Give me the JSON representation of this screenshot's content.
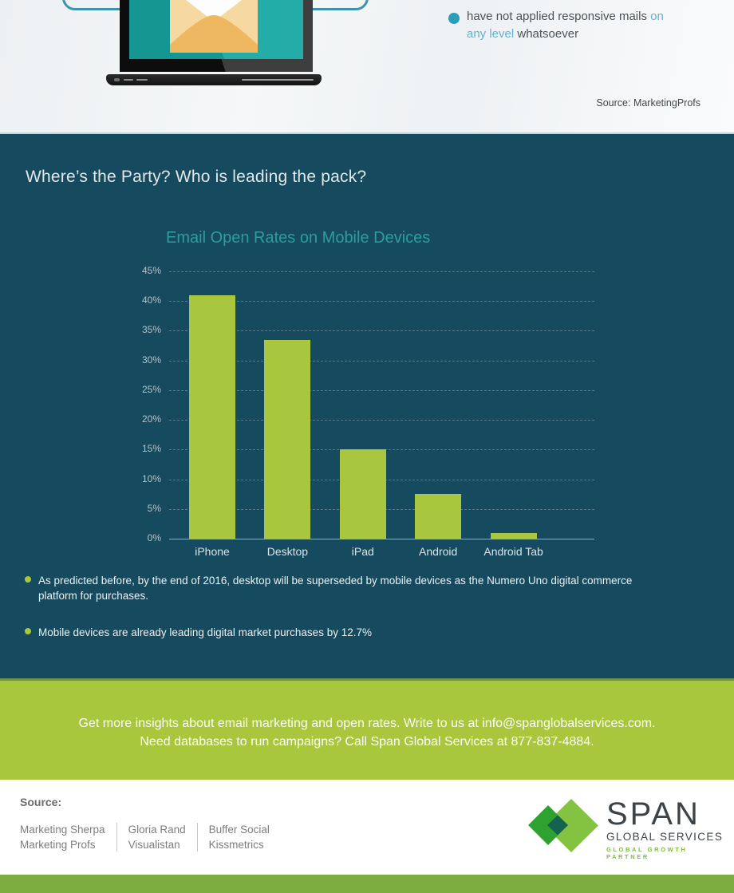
{
  "top": {
    "note": {
      "text_start": "have not applied responsive mails",
      "hl_line1": "on",
      "hl_line2": "any level",
      "text_end": "whatsoever"
    },
    "source": "Source: MarketingProfs"
  },
  "main": {
    "heading": "Where’s the Party? Who is leading the pack?",
    "bullets": [
      "As predicted before, by the end of 2016, desktop will be superseded by mobile devices as the Numero Uno digital commerce platform for purchases.",
      "Mobile devices are already leading digital market purchases by 12.7%"
    ]
  },
  "chart_data": {
    "type": "bar",
    "title": "Email Open Rates on Mobile Devices",
    "categories": [
      "iPhone",
      "Desktop",
      "iPad",
      "Android",
      "Android Tab"
    ],
    "values": [
      41,
      33.5,
      15,
      7.5,
      1
    ],
    "xlabel": "",
    "ylabel": "",
    "ylim": [
      0,
      45
    ],
    "ytick_step": 5,
    "ytick_suffix": "%",
    "grid": "horizontal-dashed",
    "legend": "none",
    "bar_color": "#a9c73e"
  },
  "banner": {
    "line1": "Get more insights about email marketing and open rates. Write to us at info@spanglobalservices.com.",
    "line2": "Need databases to run campaigns? Call Span Global Services at 877-837-4884."
  },
  "footer": {
    "source_label": "Source:",
    "source_columns": [
      [
        "Marketing Sherpa",
        "Marketing Profs"
      ],
      [
        "Gloria Rand",
        "Visualistan"
      ],
      [
        "Buffer Social",
        "Kissmetrics"
      ]
    ],
    "logo": {
      "name": "SPAN",
      "subtitle": "GLOBAL SERVICES",
      "tagline": "GLOBAL GROWTH PARTNER"
    }
  },
  "colors": {
    "dark_background": "#154a5f",
    "lime_accent": "#a9c73e",
    "teal_accent": "#2d9da0",
    "banner_green": "#a9c73c",
    "bottom_bar_green": "#7dac41",
    "bubble_teal": "#3d93ac",
    "screen_teal": "#17a7a3",
    "note_highlight_blue": "#66b2cd"
  }
}
